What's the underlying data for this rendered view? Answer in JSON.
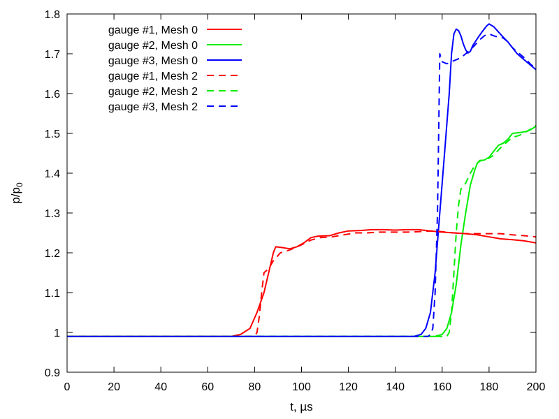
{
  "chart_data": {
    "type": "line",
    "title": "",
    "xlabel": "t, µs",
    "ylabel": "p/p0",
    "ylabel_main": "p/p",
    "ylabel_sub": "0",
    "xlim": [
      0,
      200
    ],
    "ylim": [
      0.9,
      1.8
    ],
    "xticks": [
      0,
      20,
      40,
      60,
      80,
      100,
      120,
      140,
      160,
      180,
      200
    ],
    "yticks": [
      0.9,
      1.0,
      1.1,
      1.2,
      1.3,
      1.4,
      1.5,
      1.6,
      1.7,
      1.8
    ],
    "ytick_labels": [
      "0.9",
      "1",
      "1.1",
      "1.2",
      "1.3",
      "1.4",
      "1.5",
      "1.6",
      "1.7",
      "1.8"
    ],
    "grid": false,
    "legend_position": "top-left",
    "series": [
      {
        "name": "gauge #1, Mesh 0",
        "color": "#ff0000",
        "dash": "solid",
        "points": [
          [
            0,
            0.99
          ],
          [
            70,
            0.99
          ],
          [
            74,
            0.995
          ],
          [
            78,
            1.01
          ],
          [
            81,
            1.05
          ],
          [
            84,
            1.1
          ],
          [
            86,
            1.15
          ],
          [
            88,
            1.2
          ],
          [
            89,
            1.215
          ],
          [
            92,
            1.213
          ],
          [
            95,
            1.21
          ],
          [
            98,
            1.215
          ],
          [
            101,
            1.225
          ],
          [
            104,
            1.238
          ],
          [
            107,
            1.242
          ],
          [
            112,
            1.243
          ],
          [
            116,
            1.25
          ],
          [
            120,
            1.255
          ],
          [
            125,
            1.256
          ],
          [
            130,
            1.258
          ],
          [
            135,
            1.258
          ],
          [
            140,
            1.257
          ],
          [
            145,
            1.258
          ],
          [
            150,
            1.258
          ],
          [
            155,
            1.255
          ],
          [
            160,
            1.252
          ],
          [
            165,
            1.25
          ],
          [
            170,
            1.248
          ],
          [
            175,
            1.245
          ],
          [
            180,
            1.24
          ],
          [
            185,
            1.235
          ],
          [
            190,
            1.233
          ],
          [
            195,
            1.23
          ],
          [
            200,
            1.225
          ]
        ]
      },
      {
        "name": "gauge #2, Mesh 0",
        "color": "#00ee00",
        "dash": "solid",
        "points": [
          [
            0,
            0.99
          ],
          [
            157,
            0.99
          ],
          [
            160,
            0.995
          ],
          [
            162,
            1.01
          ],
          [
            164,
            1.05
          ],
          [
            166,
            1.12
          ],
          [
            168,
            1.22
          ],
          [
            170,
            1.3
          ],
          [
            172,
            1.37
          ],
          [
            174,
            1.41
          ],
          [
            175,
            1.425
          ],
          [
            176,
            1.432
          ],
          [
            178,
            1.433
          ],
          [
            180,
            1.44
          ],
          [
            182,
            1.455
          ],
          [
            184,
            1.47
          ],
          [
            186,
            1.475
          ],
          [
            188,
            1.485
          ],
          [
            190,
            1.5
          ],
          [
            193,
            1.502
          ],
          [
            196,
            1.505
          ],
          [
            198,
            1.51
          ],
          [
            200,
            1.518
          ]
        ]
      },
      {
        "name": "gauge #3, Mesh 0",
        "color": "#0000ff",
        "dash": "solid",
        "points": [
          [
            0,
            0.99
          ],
          [
            148,
            0.99
          ],
          [
            151,
            0.995
          ],
          [
            153,
            1.01
          ],
          [
            155,
            1.05
          ],
          [
            157,
            1.15
          ],
          [
            159,
            1.3
          ],
          [
            161,
            1.45
          ],
          [
            163,
            1.6
          ],
          [
            164,
            1.7
          ],
          [
            165,
            1.75
          ],
          [
            166,
            1.762
          ],
          [
            167,
            1.758
          ],
          [
            168,
            1.745
          ],
          [
            169,
            1.725
          ],
          [
            170,
            1.71
          ],
          [
            171,
            1.702
          ],
          [
            172,
            1.706
          ],
          [
            173,
            1.72
          ],
          [
            175,
            1.738
          ],
          [
            177,
            1.755
          ],
          [
            179,
            1.77
          ],
          [
            180,
            1.775
          ],
          [
            182,
            1.768
          ],
          [
            184,
            1.755
          ],
          [
            186,
            1.742
          ],
          [
            188,
            1.73
          ],
          [
            190,
            1.715
          ],
          [
            192,
            1.7
          ],
          [
            195,
            1.685
          ],
          [
            198,
            1.67
          ],
          [
            200,
            1.66
          ]
        ]
      },
      {
        "name": "gauge #1, Mesh 2",
        "color": "#ff0000",
        "dash": "dashed",
        "points": [
          [
            0,
            0.99
          ],
          [
            80,
            0.99
          ],
          [
            81,
            1.0
          ],
          [
            82,
            1.04
          ],
          [
            83,
            1.1
          ],
          [
            84,
            1.15
          ],
          [
            86,
            1.16
          ],
          [
            88,
            1.18
          ],
          [
            91,
            1.2
          ],
          [
            94,
            1.205
          ],
          [
            97,
            1.212
          ],
          [
            100,
            1.22
          ],
          [
            104,
            1.232
          ],
          [
            108,
            1.238
          ],
          [
            113,
            1.24
          ],
          [
            118,
            1.245
          ],
          [
            123,
            1.25
          ],
          [
            128,
            1.25
          ],
          [
            133,
            1.252
          ],
          [
            140,
            1.252
          ],
          [
            145,
            1.252
          ],
          [
            150,
            1.253
          ],
          [
            155,
            1.255
          ],
          [
            160,
            1.253
          ],
          [
            165,
            1.25
          ],
          [
            170,
            1.248
          ],
          [
            175,
            1.248
          ],
          [
            180,
            1.248
          ],
          [
            185,
            1.248
          ],
          [
            190,
            1.245
          ],
          [
            195,
            1.243
          ],
          [
            200,
            1.24
          ]
        ]
      },
      {
        "name": "gauge #2, Mesh 2",
        "color": "#00ee00",
        "dash": "dashed",
        "points": [
          [
            0,
            0.99
          ],
          [
            162,
            0.99
          ],
          [
            163,
            1.0
          ],
          [
            164,
            1.05
          ],
          [
            165,
            1.15
          ],
          [
            166,
            1.25
          ],
          [
            167,
            1.32
          ],
          [
            168,
            1.36
          ],
          [
            170,
            1.375
          ],
          [
            172,
            1.4
          ],
          [
            174,
            1.42
          ],
          [
            176,
            1.43
          ],
          [
            178,
            1.435
          ],
          [
            180,
            1.438
          ],
          [
            182,
            1.445
          ],
          [
            184,
            1.458
          ],
          [
            186,
            1.47
          ],
          [
            188,
            1.48
          ],
          [
            190,
            1.49
          ],
          [
            193,
            1.495
          ],
          [
            196,
            1.505
          ],
          [
            199,
            1.515
          ],
          [
            200,
            1.52
          ]
        ]
      },
      {
        "name": "gauge #3, Mesh 2",
        "color": "#0000ff",
        "dash": "dashed",
        "points": [
          [
            0,
            0.99
          ],
          [
            154,
            0.99
          ],
          [
            155,
            0.995
          ],
          [
            156,
            1.01
          ],
          [
            157,
            1.1
          ],
          [
            158,
            1.3
          ],
          [
            158.5,
            1.5
          ],
          [
            159,
            1.7
          ],
          [
            160,
            1.68
          ],
          [
            162,
            1.675
          ],
          [
            164,
            1.68
          ],
          [
            166,
            1.685
          ],
          [
            168,
            1.69
          ],
          [
            170,
            1.7
          ],
          [
            172,
            1.71
          ],
          [
            174,
            1.722
          ],
          [
            176,
            1.735
          ],
          [
            178,
            1.745
          ],
          [
            180,
            1.75
          ],
          [
            182,
            1.745
          ],
          [
            184,
            1.742
          ],
          [
            186,
            1.74
          ],
          [
            188,
            1.73
          ],
          [
            190,
            1.715
          ],
          [
            193,
            1.7
          ],
          [
            196,
            1.685
          ],
          [
            198,
            1.672
          ],
          [
            200,
            1.665
          ]
        ]
      }
    ]
  }
}
